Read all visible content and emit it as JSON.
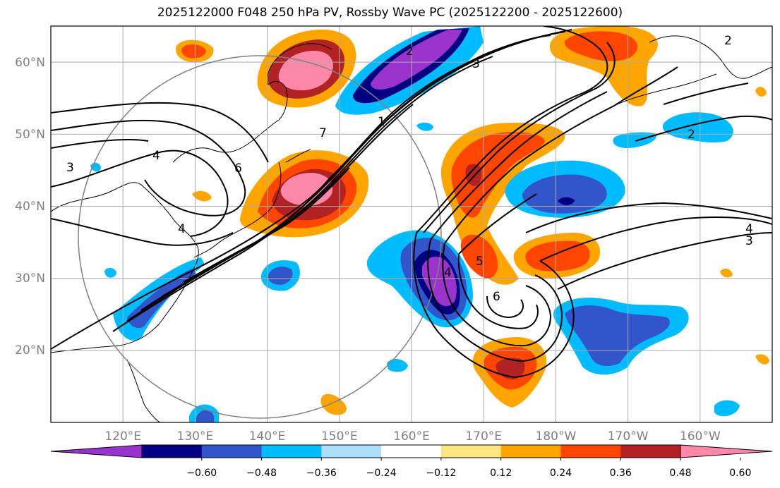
{
  "title": "2025122000 F048 250 hPa PV, Rossby Wave PC (2025122200 - 2025122600)",
  "lat_labels": [
    "60°N",
    "50°N",
    "40°N",
    "30°N",
    "20°N"
  ],
  "lon_labels": [
    "120°E",
    "130°E",
    "140°E",
    "150°E",
    "160°E",
    "170°E",
    "180°W",
    "170°W",
    "160°W"
  ],
  "colorbar": {
    "ticks": [
      "−0.60",
      "−0.48",
      "−0.36",
      "−0.24",
      "−0.12",
      "0.12",
      "0.24",
      "0.36",
      "0.48",
      "0.60"
    ],
    "colors": [
      "#9933cc",
      "#000080",
      "#3355cc",
      "#00bbff",
      "#aaddff",
      "#ffffff",
      "#ffe680",
      "#ffa500",
      "#ff4500",
      "#b22222",
      "#ff88aa"
    ]
  },
  "contour_labels": [
    "3",
    "4",
    "6",
    "4",
    "7",
    "2",
    "3",
    "1",
    "2",
    "5",
    "6",
    "4",
    "4",
    "3",
    "2"
  ],
  "map": {
    "projection": "PlateCarree (central longitude 180)",
    "extent_lon": [
      110,
      210
    ],
    "extent_lat": [
      10,
      65
    ]
  }
}
